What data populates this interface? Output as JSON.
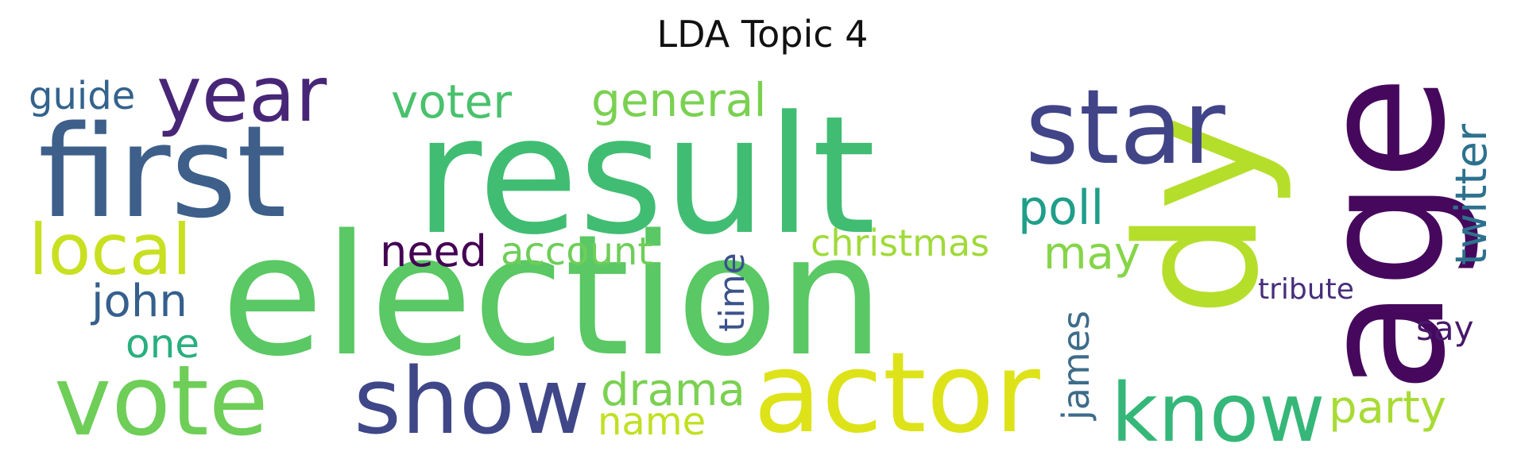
{
  "title": "LDA Topic 4",
  "words": [
    {
      "text": "result",
      "color": "#40bd72"
    },
    {
      "text": "election",
      "color": "#5ac864"
    },
    {
      "text": "first",
      "color": "#3d5f8a"
    },
    {
      "text": "dy",
      "color": "#b5de2b"
    },
    {
      "text": "age",
      "color": "#46085c"
    },
    {
      "text": "star",
      "color": "#414487"
    },
    {
      "text": "actor",
      "color": "#dde318"
    },
    {
      "text": "show",
      "color": "#3f4788"
    },
    {
      "text": "vote",
      "color": "#6ece58"
    },
    {
      "text": "know",
      "color": "#35b779"
    },
    {
      "text": "year",
      "color": "#482677"
    },
    {
      "text": "local",
      "color": "#c8e020"
    },
    {
      "text": "voter",
      "color": "#4ac16d"
    },
    {
      "text": "general",
      "color": "#7ad151"
    },
    {
      "text": "poll",
      "color": "#1f9e89"
    },
    {
      "text": "twitter",
      "color": "#2c728e"
    },
    {
      "text": "guide",
      "color": "#33638d"
    },
    {
      "text": "need",
      "color": "#440154"
    },
    {
      "text": "account",
      "color": "#6ece58"
    },
    {
      "text": "christmas",
      "color": "#a0da39"
    },
    {
      "text": "may",
      "color": "#86d549"
    },
    {
      "text": "john",
      "color": "#355f8d"
    },
    {
      "text": "one",
      "color": "#29af7f"
    },
    {
      "text": "time",
      "color": "#3b528b"
    },
    {
      "text": "tribute",
      "color": "#472d7b"
    },
    {
      "text": "say",
      "color": "#48186a"
    },
    {
      "text": "james",
      "color": "#3e6c8a"
    },
    {
      "text": "drama",
      "color": "#7ad151"
    },
    {
      "text": "name",
      "color": "#c2df23"
    },
    {
      "text": "party",
      "color": "#a8db34"
    }
  ]
}
